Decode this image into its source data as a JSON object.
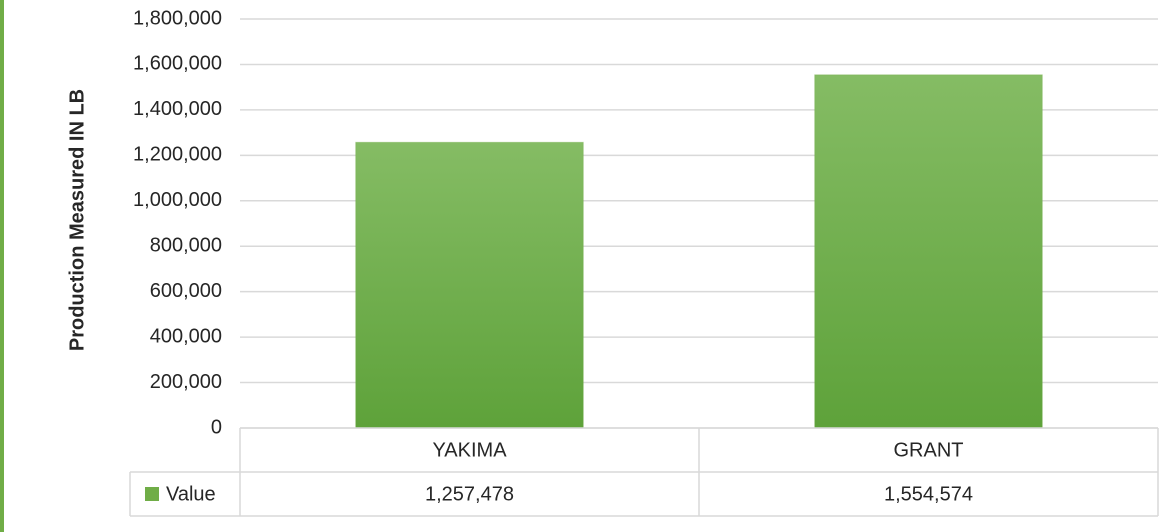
{
  "chart_data": {
    "type": "bar",
    "y_label": "Production Measured IN LB",
    "categories": [
      "YAKIMA",
      "GRANT"
    ],
    "series": [
      {
        "name": "Value",
        "color": "#70ad47",
        "values": [
          1257478,
          1554574
        ],
        "value_labels": [
          "1,257,478",
          "1,554,574"
        ]
      }
    ],
    "ylim": [
      0,
      1800000
    ],
    "yticks": [
      0,
      {
        "value": 200000,
        "label": "200,000"
      },
      {
        "value": 400000,
        "label": "400,000"
      },
      {
        "value": 600000,
        "label": "600,000"
      },
      {
        "value": 800000,
        "label": "800,000"
      },
      {
        "value": 1000000,
        "label": "1,000,000"
      },
      {
        "value": 1200000,
        "label": "1,200,000"
      },
      {
        "value": 1400000,
        "label": "1,400,000"
      },
      {
        "value": 1600000,
        "label": "1,600,000"
      },
      {
        "value": 1800000,
        "label": "1,800,000"
      }
    ],
    "grid": true,
    "data_table": true
  }
}
